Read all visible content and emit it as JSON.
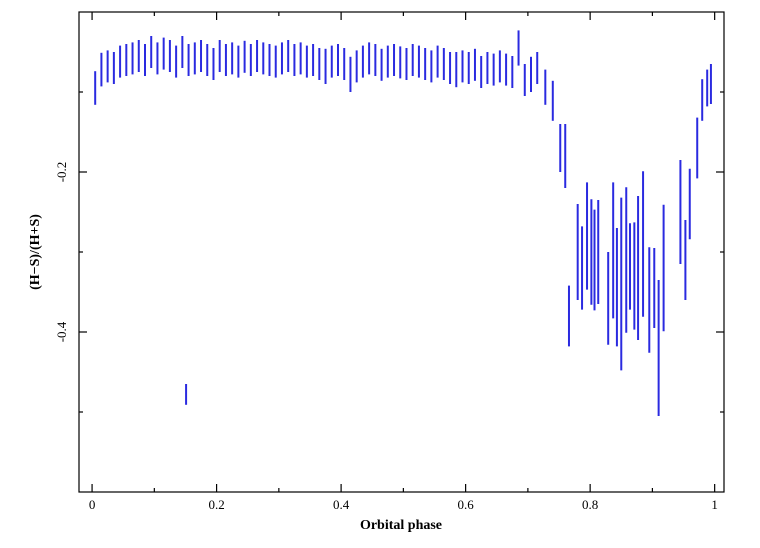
{
  "chart_data": {
    "type": "errorbar",
    "x_label": "Orbital phase",
    "y_label": "(H−S)/(H+S)",
    "color": "#2a2ae0",
    "xlim": [
      -0.021,
      1.015
    ],
    "ylim": [
      -0.6,
      0
    ],
    "xticks": [
      0,
      0.2,
      0.4,
      0.6,
      0.8,
      1
    ],
    "xminor": [
      0.1,
      0.3,
      0.5,
      0.7,
      0.9
    ],
    "yticks": [
      -0.2,
      -0.4
    ],
    "yminor": [
      -0.1,
      -0.3,
      -0.5
    ],
    "x": [
      0.005,
      0.015,
      0.025,
      0.035,
      0.045,
      0.055,
      0.065,
      0.075,
      0.085,
      0.095,
      0.105,
      0.115,
      0.125,
      0.135,
      0.145,
      0.151,
      0.155,
      0.165,
      0.175,
      0.185,
      0.195,
      0.205,
      0.215,
      0.225,
      0.235,
      0.245,
      0.255,
      0.265,
      0.275,
      0.285,
      0.295,
      0.305,
      0.315,
      0.325,
      0.335,
      0.345,
      0.355,
      0.365,
      0.375,
      0.385,
      0.395,
      0.405,
      0.415,
      0.425,
      0.435,
      0.445,
      0.455,
      0.465,
      0.475,
      0.485,
      0.495,
      0.505,
      0.515,
      0.525,
      0.535,
      0.545,
      0.555,
      0.565,
      0.575,
      0.585,
      0.595,
      0.605,
      0.615,
      0.625,
      0.635,
      0.645,
      0.655,
      0.665,
      0.675,
      0.685,
      0.695,
      0.705,
      0.715,
      0.728,
      0.74,
      0.752,
      0.76,
      0.766,
      0.78,
      0.787,
      0.795,
      0.802,
      0.807,
      0.813,
      0.829,
      0.837,
      0.843,
      0.85,
      0.858,
      0.864,
      0.871,
      0.877,
      0.885,
      0.895,
      0.903,
      0.91,
      0.918,
      0.945,
      0.953,
      0.96,
      0.972,
      0.98,
      0.988,
      0.994
    ],
    "values": [
      -0.095,
      -0.072,
      -0.068,
      -0.07,
      -0.062,
      -0.06,
      -0.058,
      -0.055,
      -0.06,
      -0.05,
      -0.058,
      -0.052,
      -0.055,
      -0.062,
      -0.05,
      -0.478,
      -0.06,
      -0.058,
      -0.055,
      -0.06,
      -0.065,
      -0.055,
      -0.06,
      -0.058,
      -0.062,
      -0.056,
      -0.06,
      -0.055,
      -0.058,
      -0.06,
      -0.062,
      -0.058,
      -0.055,
      -0.06,
      -0.058,
      -0.062,
      -0.06,
      -0.065,
      -0.068,
      -0.062,
      -0.06,
      -0.065,
      -0.078,
      -0.068,
      -0.062,
      -0.058,
      -0.06,
      -0.066,
      -0.062,
      -0.06,
      -0.063,
      -0.065,
      -0.06,
      -0.062,
      -0.065,
      -0.068,
      -0.062,
      -0.065,
      -0.07,
      -0.072,
      -0.068,
      -0.07,
      -0.066,
      -0.075,
      -0.07,
      -0.072,
      -0.068,
      -0.072,
      -0.075,
      -0.045,
      -0.085,
      -0.078,
      -0.07,
      -0.094,
      -0.111,
      -0.17,
      -0.18,
      -0.38,
      -0.3,
      -0.32,
      -0.28,
      -0.3,
      -0.31,
      -0.3,
      -0.358,
      -0.298,
      -0.344,
      -0.34,
      -0.31,
      -0.318,
      -0.33,
      -0.32,
      -0.29,
      -0.36,
      -0.345,
      -0.42,
      -0.32,
      -0.25,
      -0.31,
      -0.24,
      -0.17,
      -0.11,
      -0.095,
      -0.09
    ],
    "errors": [
      0.021,
      0.021,
      0.02,
      0.02,
      0.02,
      0.02,
      0.02,
      0.02,
      0.02,
      0.02,
      0.02,
      0.02,
      0.02,
      0.02,
      0.02,
      0.013,
      0.02,
      0.02,
      0.02,
      0.02,
      0.02,
      0.02,
      0.02,
      0.02,
      0.02,
      0.02,
      0.02,
      0.02,
      0.02,
      0.02,
      0.02,
      0.02,
      0.02,
      0.02,
      0.02,
      0.02,
      0.02,
      0.02,
      0.022,
      0.02,
      0.02,
      0.02,
      0.022,
      0.02,
      0.02,
      0.02,
      0.02,
      0.02,
      0.02,
      0.02,
      0.02,
      0.02,
      0.02,
      0.02,
      0.02,
      0.02,
      0.02,
      0.02,
      0.02,
      0.022,
      0.02,
      0.02,
      0.02,
      0.02,
      0.02,
      0.02,
      0.02,
      0.02,
      0.02,
      0.022,
      0.02,
      0.022,
      0.02,
      0.022,
      0.025,
      0.03,
      0.04,
      0.038,
      0.06,
      0.052,
      0.067,
      0.066,
      0.063,
      0.065,
      0.058,
      0.085,
      0.074,
      0.108,
      0.091,
      0.054,
      0.067,
      0.09,
      0.091,
      0.066,
      0.05,
      0.085,
      0.079,
      0.065,
      0.05,
      0.044,
      0.038,
      0.026,
      0.023,
      0.025
    ]
  }
}
